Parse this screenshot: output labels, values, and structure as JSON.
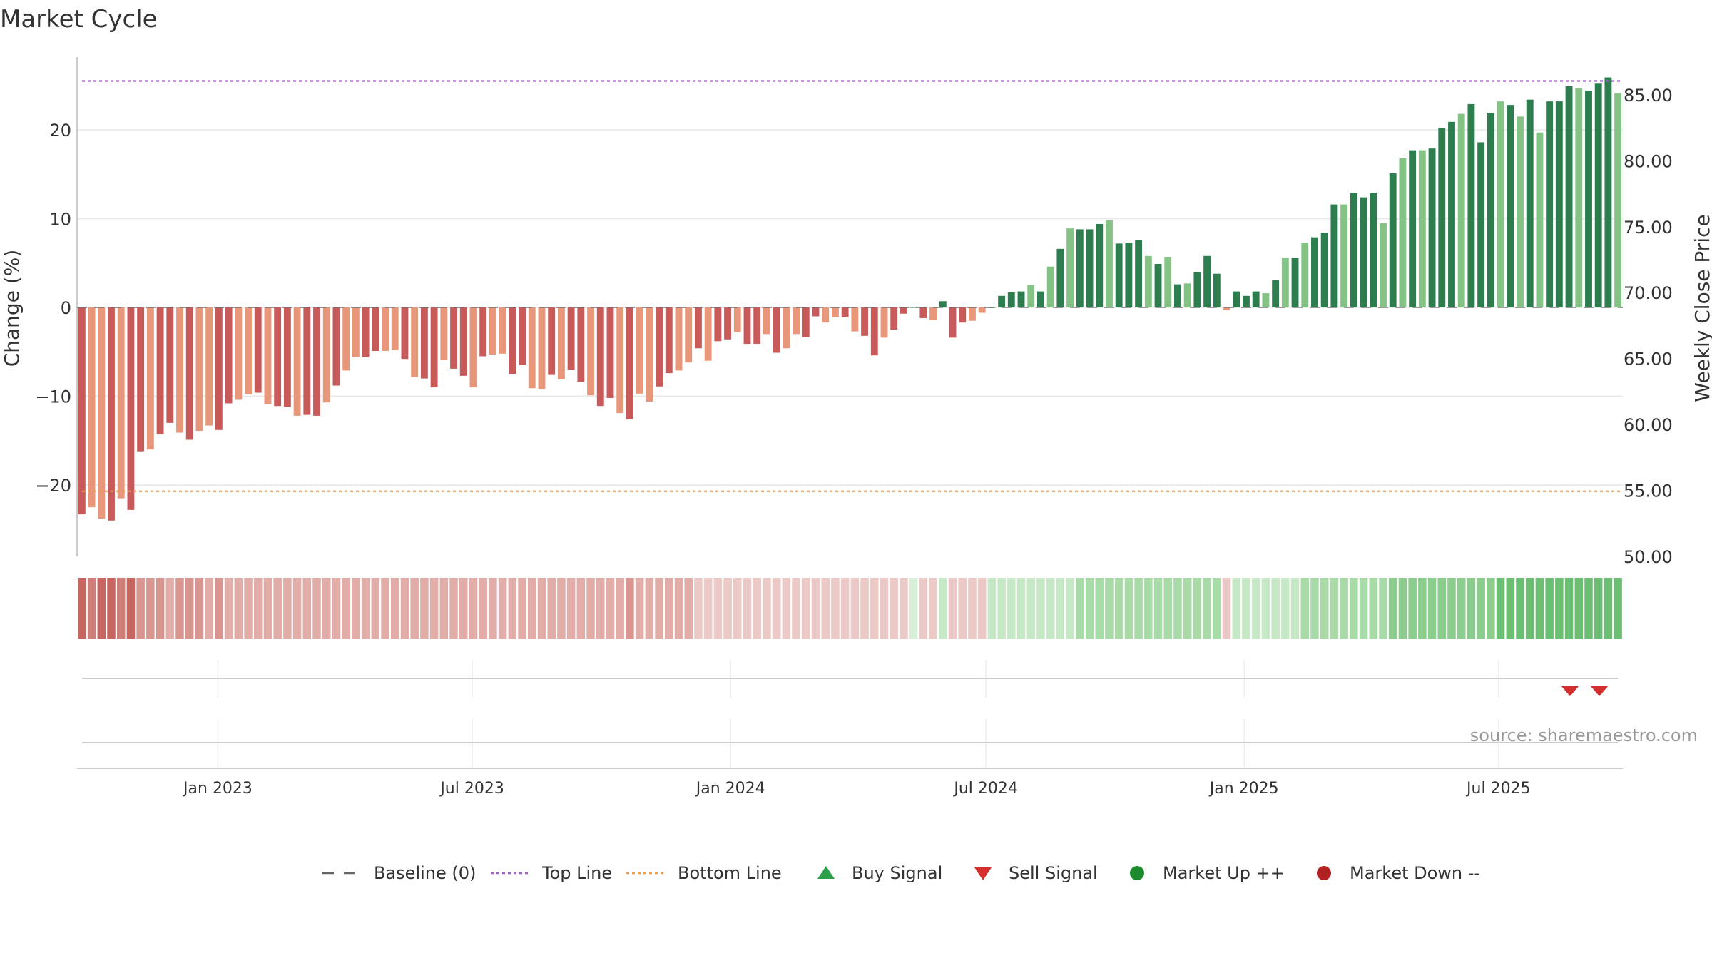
{
  "chart_data": {
    "type": "bar",
    "title": "Market Cycle",
    "ylabel_left": "Change (%)",
    "ylabel_right": "Weekly Close Price",
    "left_ticks": [
      "20",
      "10",
      "0",
      "−10",
      "−20"
    ],
    "left_tick_values": [
      20,
      10,
      0,
      -10,
      -20
    ],
    "right_ticks": [
      "85.00",
      "80.00",
      "75.00",
      "70.00",
      "65.00",
      "60.00",
      "55.00",
      "50.00"
    ],
    "right_tick_values": [
      85,
      80,
      75,
      70,
      65,
      60,
      55,
      50
    ],
    "ylim": [
      -28,
      28
    ],
    "top_line": 25.5,
    "bottom_line": -20.7,
    "x_tick_labels": [
      "Jan 2023",
      "Jul 2023",
      "Jan 2024",
      "Jul 2024",
      "Jan 2025",
      "Jul 2025"
    ],
    "x_tick_weeks": [
      14.4,
      40.4,
      66.8,
      92.9,
      119.3,
      145.3
    ],
    "values": [
      -23.3,
      -22.5,
      -23.8,
      -24.0,
      -21.5,
      -22.8,
      -16.2,
      -16.0,
      -14.3,
      -13.0,
      -14.1,
      -14.9,
      -13.9,
      -13.3,
      -13.8,
      -10.8,
      -10.4,
      -9.8,
      -9.6,
      -10.9,
      -11.1,
      -11.2,
      -12.2,
      -12.1,
      -12.2,
      -10.7,
      -8.8,
      -7.1,
      -5.6,
      -5.6,
      -4.9,
      -4.9,
      -4.8,
      -5.8,
      -7.8,
      -8.0,
      -9.0,
      -5.9,
      -6.9,
      -7.7,
      -9.0,
      -5.5,
      -5.3,
      -5.2,
      -7.5,
      -6.5,
      -9.1,
      -9.2,
      -7.6,
      -8.1,
      -7.0,
      -8.4,
      -9.9,
      -11.1,
      -10.2,
      -11.9,
      -12.6,
      -9.7,
      -10.6,
      -8.9,
      -7.4,
      -7.1,
      -6.2,
      -4.6,
      -6.0,
      -3.8,
      -3.6,
      -2.8,
      -4.1,
      -4.1,
      -3.0,
      -5.1,
      -4.6,
      -3.0,
      -3.3,
      -1.0,
      -1.7,
      -1.1,
      -1.1,
      -2.7,
      -3.2,
      -5.4,
      -3.4,
      -2.5,
      -0.7,
      0.0,
      -1.2,
      -1.4,
      0.7,
      -3.4,
      -1.7,
      -1.5,
      -0.6,
      0.0,
      1.3,
      1.7,
      1.8,
      2.5,
      1.8,
      4.6,
      6.6,
      8.9,
      8.8,
      8.8,
      9.4,
      9.8,
      7.2,
      7.3,
      7.6,
      5.8,
      4.9,
      5.7,
      2.6,
      2.7,
      4.0,
      5.8,
      3.8,
      -0.3,
      1.8,
      1.3,
      1.8,
      1.6,
      3.1,
      5.6,
      5.6,
      7.3,
      7.9,
      8.4,
      11.6,
      11.6,
      12.9,
      12.4,
      12.9,
      9.5,
      15.1,
      16.8,
      17.7,
      17.7,
      17.9,
      20.2,
      20.9,
      21.8,
      22.9,
      18.6,
      21.9,
      23.2,
      22.8,
      21.5,
      23.4,
      19.7,
      23.2,
      23.2,
      24.9,
      24.7,
      24.4,
      25.2,
      25.9,
      24.1
    ],
    "strength": [
      5,
      4,
      5,
      5,
      4,
      5,
      3,
      3,
      3,
      2,
      3,
      3,
      3,
      2,
      3,
      2,
      2,
      2,
      2,
      2,
      2,
      2,
      2,
      2,
      2,
      2,
      2,
      2,
      2,
      2,
      2,
      2,
      2,
      2,
      2,
      2,
      2,
      2,
      2,
      2,
      2,
      2,
      2,
      2,
      2,
      2,
      2,
      2,
      2,
      2,
      2,
      2,
      2,
      2,
      2,
      2,
      3,
      2,
      2,
      2,
      2,
      2,
      2,
      1,
      1,
      1,
      1,
      1,
      1,
      1,
      1,
      1,
      1,
      1,
      1,
      1,
      1,
      1,
      1,
      1,
      1,
      1,
      1,
      1,
      1,
      0,
      1,
      1,
      1,
      1,
      1,
      1,
      1,
      1,
      1,
      1,
      1,
      1,
      1,
      1,
      1,
      1,
      2,
      2,
      2,
      2,
      2,
      2,
      2,
      2,
      2,
      2,
      2,
      2,
      2,
      2,
      2,
      1,
      1,
      1,
      1,
      1,
      1,
      1,
      1,
      2,
      2,
      2,
      2,
      2,
      2,
      2,
      2,
      2,
      3,
      3,
      3,
      3,
      3,
      3,
      3,
      3,
      3,
      3,
      3,
      4,
      4,
      4,
      4,
      4,
      4,
      4,
      4,
      4,
      4,
      4,
      4,
      4
    ],
    "sell_signals_week": [
      152.6,
      155.6
    ],
    "buy_signals_week": [],
    "legend": [
      {
        "label": "Baseline (0)",
        "symbol": "dashed-gray"
      },
      {
        "label": "Top Line",
        "symbol": "dotted-purple"
      },
      {
        "label": "Bottom Line",
        "symbol": "dotted-orange"
      },
      {
        "label": "Buy Signal",
        "symbol": "triangle-up-green"
      },
      {
        "label": "Sell Signal",
        "symbol": "triangle-down-red"
      },
      {
        "label": "Market Up ++",
        "symbol": "circle-green"
      },
      {
        "label": "Market Down --",
        "symbol": "circle-red"
      }
    ],
    "source_text": "source: sharemaestro.com"
  },
  "colors": {
    "strong_down": "#c85a5a",
    "weak_down": "#e8977a",
    "strong_up": "#2e7d4f",
    "weak_up": "#85c285",
    "top_line": "#a05cc9",
    "bottom_line": "#eb9a4a",
    "baseline": "#666666",
    "sell": "#d32f2f",
    "buy": "#2e9e4a",
    "market_up": "#1e8a2e",
    "market_down": "#b22222"
  }
}
